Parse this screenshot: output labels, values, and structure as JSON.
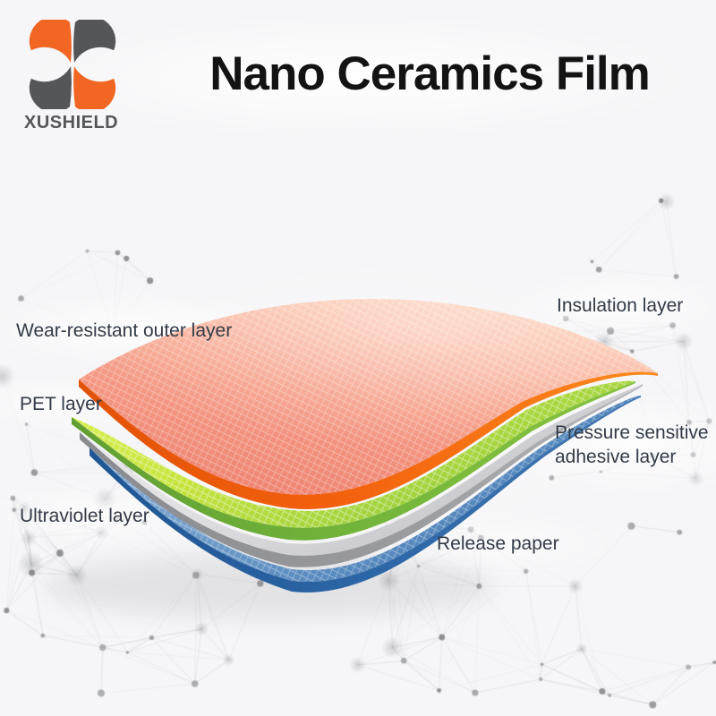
{
  "logo": {
    "brand": "XUSHIELD",
    "colors": {
      "orange": "#F16623",
      "dark": "#55565A"
    }
  },
  "header": {
    "title": "Nano Ceramics Film",
    "title_color": "#131313"
  },
  "diagram": {
    "labels": {
      "wear_resistant": "Wear-resistant outer layer",
      "insulation": "Insulation layer",
      "pet": "PET layer",
      "pressure_line1": "Pressure sensitive",
      "pressure_line2": "adhesive layer",
      "ultraviolet": "Ultraviolet layer",
      "release": "Release paper",
      "text_color": "#333B47"
    },
    "layer_colors": {
      "film_face": "#F59C86",
      "film_face_light": "#FCCDB6",
      "film_face_deep": "#EE8170",
      "film_edge": "#F3610E",
      "film_edge_light": "#FC8A1C",
      "green_face": "#C6E43E",
      "green_edge": "#76B83C",
      "gray_face": "#DEDEE1",
      "gray_edge": "#9B9CA0",
      "blue_face": "#6D9BC9",
      "blue_edge": "#2E67A7",
      "blue_edge_dark": "#1F5694"
    },
    "background_color": "#F6F6F8"
  }
}
